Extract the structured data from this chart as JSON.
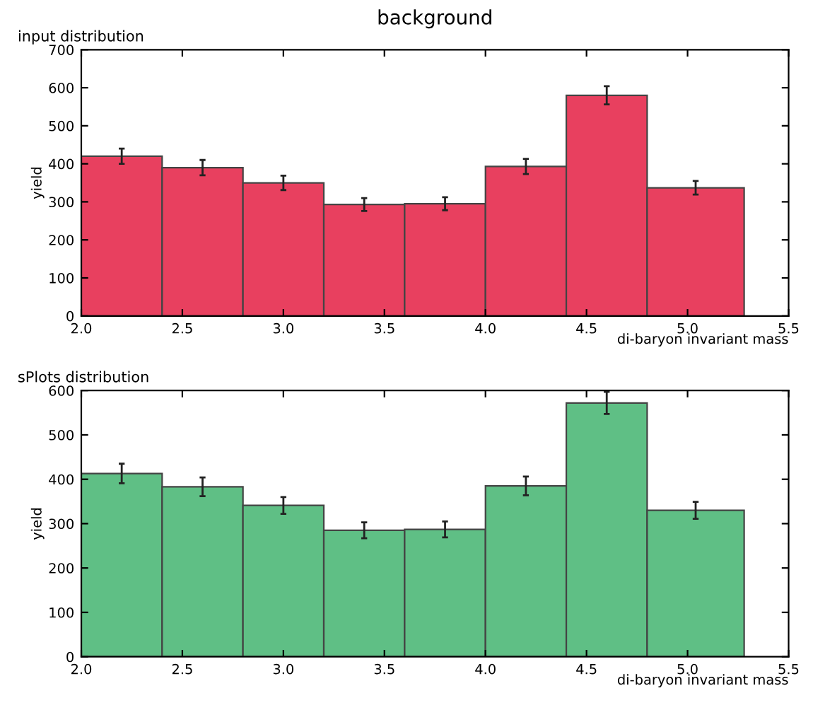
{
  "chart_data": [
    {
      "type": "histogram",
      "title": "background",
      "subtitle": "input distribution",
      "xlabel": "di-baryon invariant mass",
      "ylabel": "yield",
      "bins": [
        2.0,
        2.4,
        2.8,
        3.2,
        3.6,
        4.0,
        4.4,
        4.8,
        5.28
      ],
      "values": [
        420,
        390,
        350,
        293,
        295,
        393,
        580,
        337
      ],
      "errors": [
        20,
        20,
        19,
        17,
        17,
        20,
        24,
        18
      ],
      "color": "#e8405f",
      "xlim": [
        2.0,
        5.5
      ],
      "xticks": [
        {
          "value": 2.0,
          "label": "2.0"
        },
        2.5,
        {
          "value": 3.0,
          "label": "3.0"
        },
        3.5,
        {
          "value": 4.0,
          "label": "4.0"
        },
        4.5,
        {
          "value": 5.0,
          "label": "5.0"
        },
        5.5
      ],
      "ylim": [
        0,
        700
      ],
      "yticks": [
        0,
        100,
        200,
        300,
        400,
        500,
        600,
        700
      ],
      "grid": false
    },
    {
      "type": "histogram",
      "title": "sPlots distribution",
      "xlabel": "di-baryon invariant mass",
      "ylabel": "yield",
      "bins": [
        2.0,
        2.4,
        2.8,
        3.2,
        3.6,
        4.0,
        4.4,
        4.8,
        5.28
      ],
      "values": [
        413,
        383,
        341,
        285,
        287,
        385,
        572,
        330
      ],
      "errors": [
        22,
        21,
        19,
        18,
        18,
        21,
        25,
        19
      ],
      "color": "#5fbf85",
      "xlim": [
        2.0,
        5.5
      ],
      "xticks": [
        {
          "value": 2.0,
          "label": "2.0"
        },
        2.5,
        {
          "value": 3.0,
          "label": "3.0"
        },
        3.5,
        {
          "value": 4.0,
          "label": "4.0"
        },
        4.5,
        {
          "value": 5.0,
          "label": "5.0"
        },
        5.5
      ],
      "ylim": [
        0,
        600
      ],
      "yticks": [
        0,
        100,
        200,
        300,
        400,
        500,
        600
      ],
      "grid": false
    }
  ]
}
